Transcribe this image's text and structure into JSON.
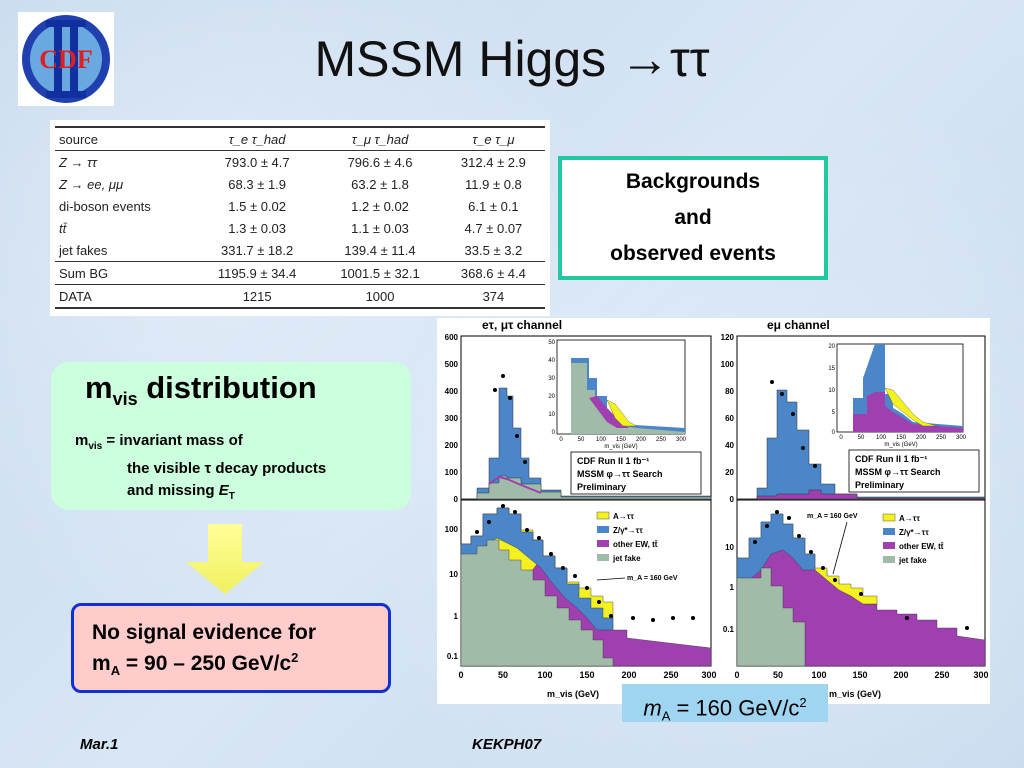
{
  "slide": {
    "title": "MSSM Higgs →ττ",
    "logo_text": "CDF"
  },
  "table": {
    "headers": [
      "source",
      "τ_e τ_had",
      "τ_μ τ_had",
      "τ_e τ_μ"
    ],
    "rows": [
      {
        "source": "Z → ττ",
        "c1": "793.0 ± 4.7",
        "c2": "796.6 ± 4.6",
        "c3": "312.4 ± 2.9"
      },
      {
        "source": "Z → ee, μμ",
        "c1": "68.3 ± 1.9",
        "c2": "63.2 ± 1.8",
        "c3": "11.9 ± 0.8"
      },
      {
        "source": "di-boson events",
        "c1": "1.5 ± 0.02",
        "c2": "1.2 ± 0.02",
        "c3": "6.1 ± 0.1"
      },
      {
        "source": "tt̄",
        "c1": "1.3 ± 0.03",
        "c2": "1.1 ± 0.03",
        "c3": "4.7 ± 0.07"
      },
      {
        "source": "jet fakes",
        "c1": "331.7 ± 18.2",
        "c2": "139.4 ± 11.4",
        "c3": "33.5 ± 3.2"
      },
      {
        "source": "Sum BG",
        "c1": "1195.9 ± 34.4",
        "c2": "1001.5 ± 32.1",
        "c3": "368.6 ± 4.4"
      },
      {
        "source": "DATA",
        "c1": "1215",
        "c2": "1000",
        "c3": "374"
      }
    ]
  },
  "backgrounds_box": {
    "line1": "Backgrounds",
    "line2": "and",
    "line3": "observed events"
  },
  "mvis_box": {
    "head_m": "m",
    "head_sub": "vis",
    "head_rest": " distribution",
    "def_m": "m",
    "def_sub": "vis",
    "def_line1_rest": " = invariant mass of",
    "def_line2": "the visible τ decay products",
    "def_line3_pre": "and  missing ",
    "def_line3_e": "E",
    "def_line3_sub": "T"
  },
  "no_signal_box": {
    "line1": "No signal evidence for",
    "line2_m": "m",
    "line2_sub": "A",
    "line2_rest": " = 90 – 250 GeV/c",
    "line2_sup": "2"
  },
  "plots": {
    "left_title": "eτ, μτ channel",
    "right_title": "eμ channel",
    "cdf_lines": [
      "CDF Run II  1 fb⁻¹",
      "MSSM φ→ττ Search",
      "Preliminary"
    ],
    "legend": [
      "A→ττ",
      "Z/γ*→ττ",
      "other EW, tt̄",
      "jet fake"
    ],
    "ma_annot": "m_A = 160 GeV",
    "xlabel": "m_vis  (GeV)",
    "inset_xlabel": "m_vis (GeV)",
    "left_lin_yticks": [
      "600",
      "500",
      "400",
      "300",
      "200",
      "100",
      "0"
    ],
    "right_lin_yticks": [
      "120",
      "100",
      "80",
      "60",
      "40",
      "20",
      "0"
    ],
    "left_log_yticks": [
      "100",
      "10",
      "1",
      "0.1"
    ],
    "right_log_yticks": [
      "10",
      "1",
      "0.1"
    ],
    "xticks": [
      "0",
      "50",
      "100",
      "150",
      "200",
      "250",
      "300"
    ],
    "left_inset_yticks": [
      "50",
      "40",
      "30",
      "20",
      "10",
      "0"
    ],
    "right_inset_yticks": [
      "20",
      "15",
      "10",
      "5",
      "0"
    ],
    "inset_xticks": [
      "0",
      "50",
      "100",
      "150",
      "200",
      "250",
      "300"
    ],
    "colors": {
      "signal": "#f5f020",
      "ztt": "#4a86c8",
      "ew": "#a040b0",
      "fake": "#a0bca8",
      "data": "#000000"
    }
  },
  "ma_label": {
    "m": "m",
    "sub": "A",
    "rest": " = 160 GeV/c",
    "sup": "2"
  },
  "footer": {
    "left": "Mar.1",
    "center": "KEKPH07"
  }
}
